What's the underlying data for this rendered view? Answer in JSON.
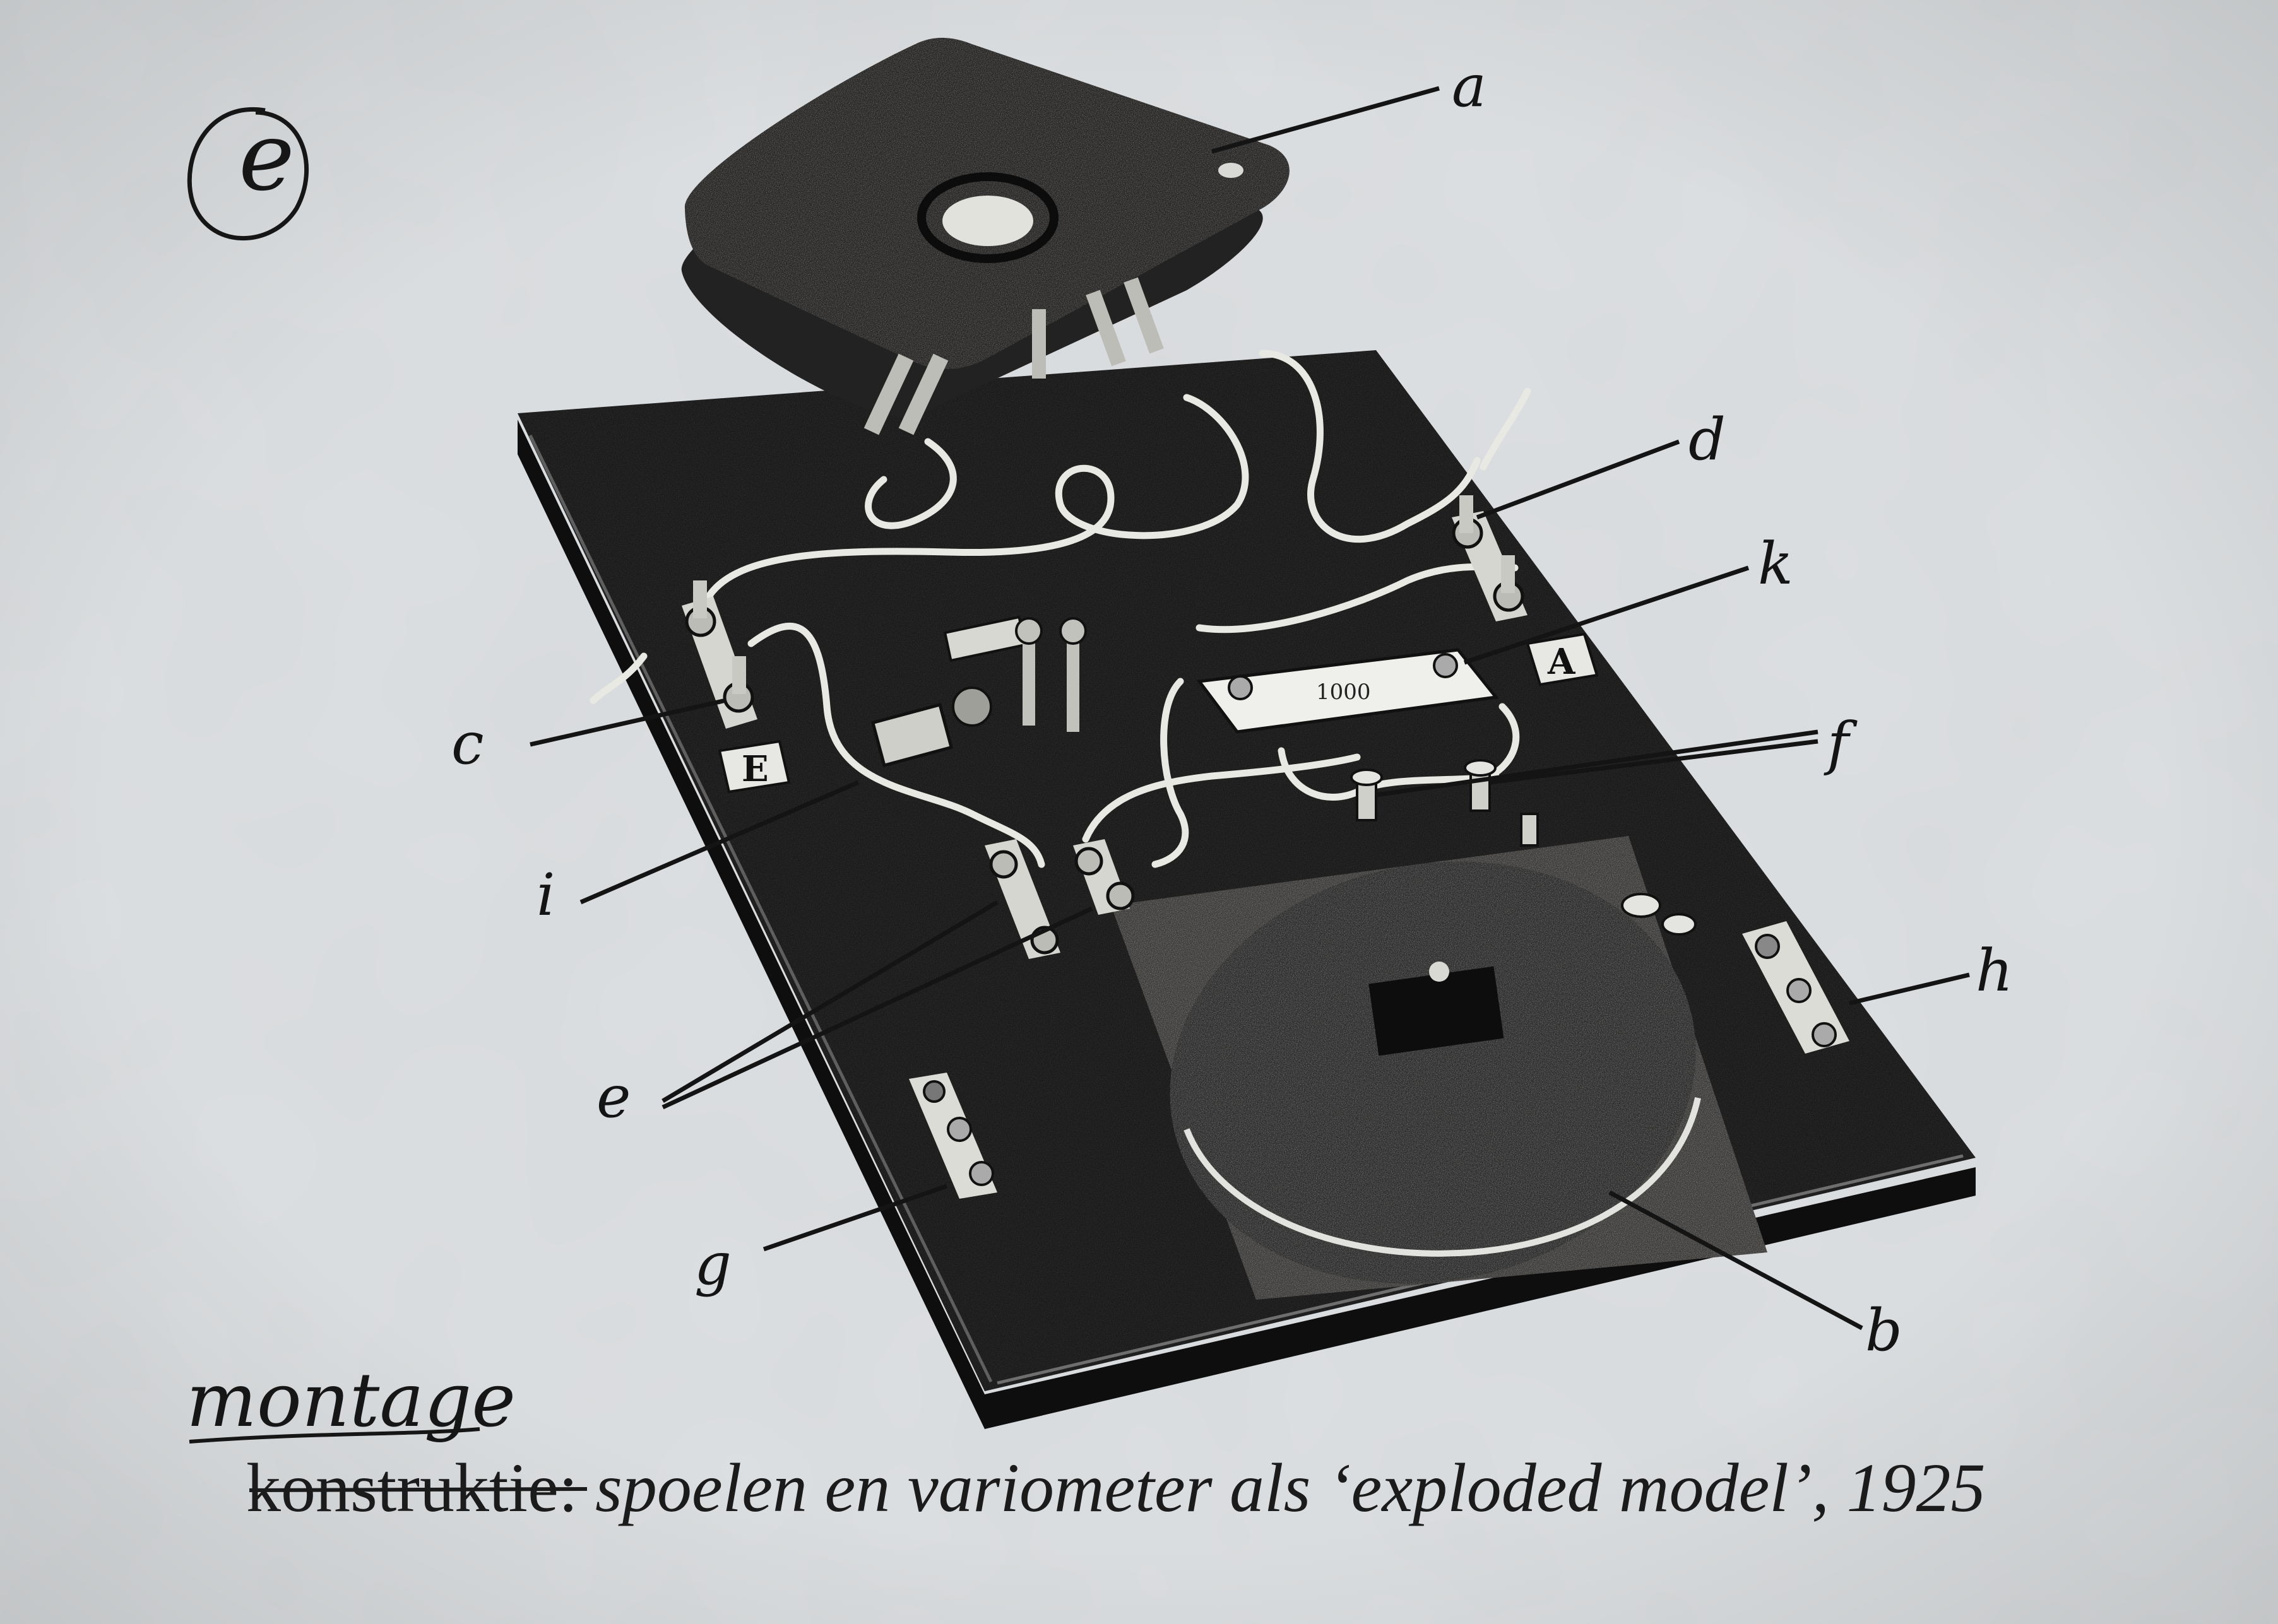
{
  "handwritten": {
    "mark": "e",
    "note": "montage"
  },
  "caption": {
    "prefix": "konstruktie",
    "separator": ": ",
    "italic": "spoelen en variometer als ‘exploded model’, 1925"
  },
  "part_labels": {
    "a": "a",
    "b": "b",
    "c": "c",
    "d": "d",
    "e": "e",
    "f": "f",
    "g": "g",
    "h": "h",
    "i": "i",
    "k": "k"
  },
  "board_markings": {
    "earth": "E",
    "antenna": "A",
    "capacitor_value": "1000"
  },
  "colors": {
    "paper": "#dcdfe1",
    "ink": "#141414",
    "board": "#1a1a1a",
    "wire": "#e9e9e4"
  }
}
